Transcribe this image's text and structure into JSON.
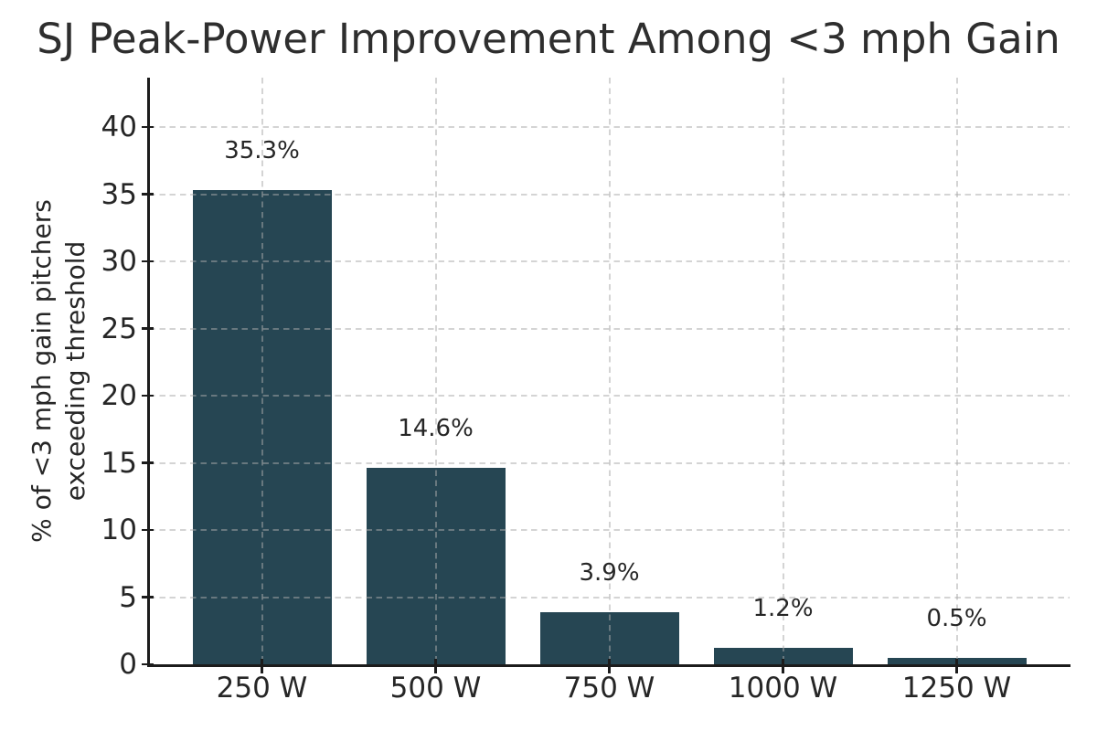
{
  "chart_data": {
    "type": "bar",
    "title": "SJ Peak-Power Improvement Among <3 mph Gain",
    "categories": [
      "250 W",
      "500 W",
      "750 W",
      "1000 W",
      "1250 W"
    ],
    "values": [
      35.3,
      14.6,
      3.9,
      1.2,
      0.5
    ],
    "bar_labels": [
      "35.3%",
      "14.6%",
      "3.9%",
      "1.2%",
      "0.5%"
    ],
    "xlabel": "",
    "ylabel_lines": [
      "% of <3 mph gain pitchers",
      "exceeding threshold"
    ],
    "yticks": [
      0,
      5,
      10,
      15,
      20,
      25,
      30,
      35,
      40
    ],
    "ytick_labels": [
      "0",
      "5",
      "10",
      "15",
      "20",
      "25",
      "30",
      "35",
      "40"
    ],
    "ylim": [
      0,
      43.7
    ],
    "grid": {
      "style": "dashed",
      "axes": "both",
      "drawn_over_bars": true
    },
    "legend": "none",
    "colors": {
      "bar": "#264653",
      "grid": "rgba(170,170,170,0.5)",
      "spine": "#1c1c1c",
      "text": "#262626",
      "background": "#ffffff"
    }
  }
}
